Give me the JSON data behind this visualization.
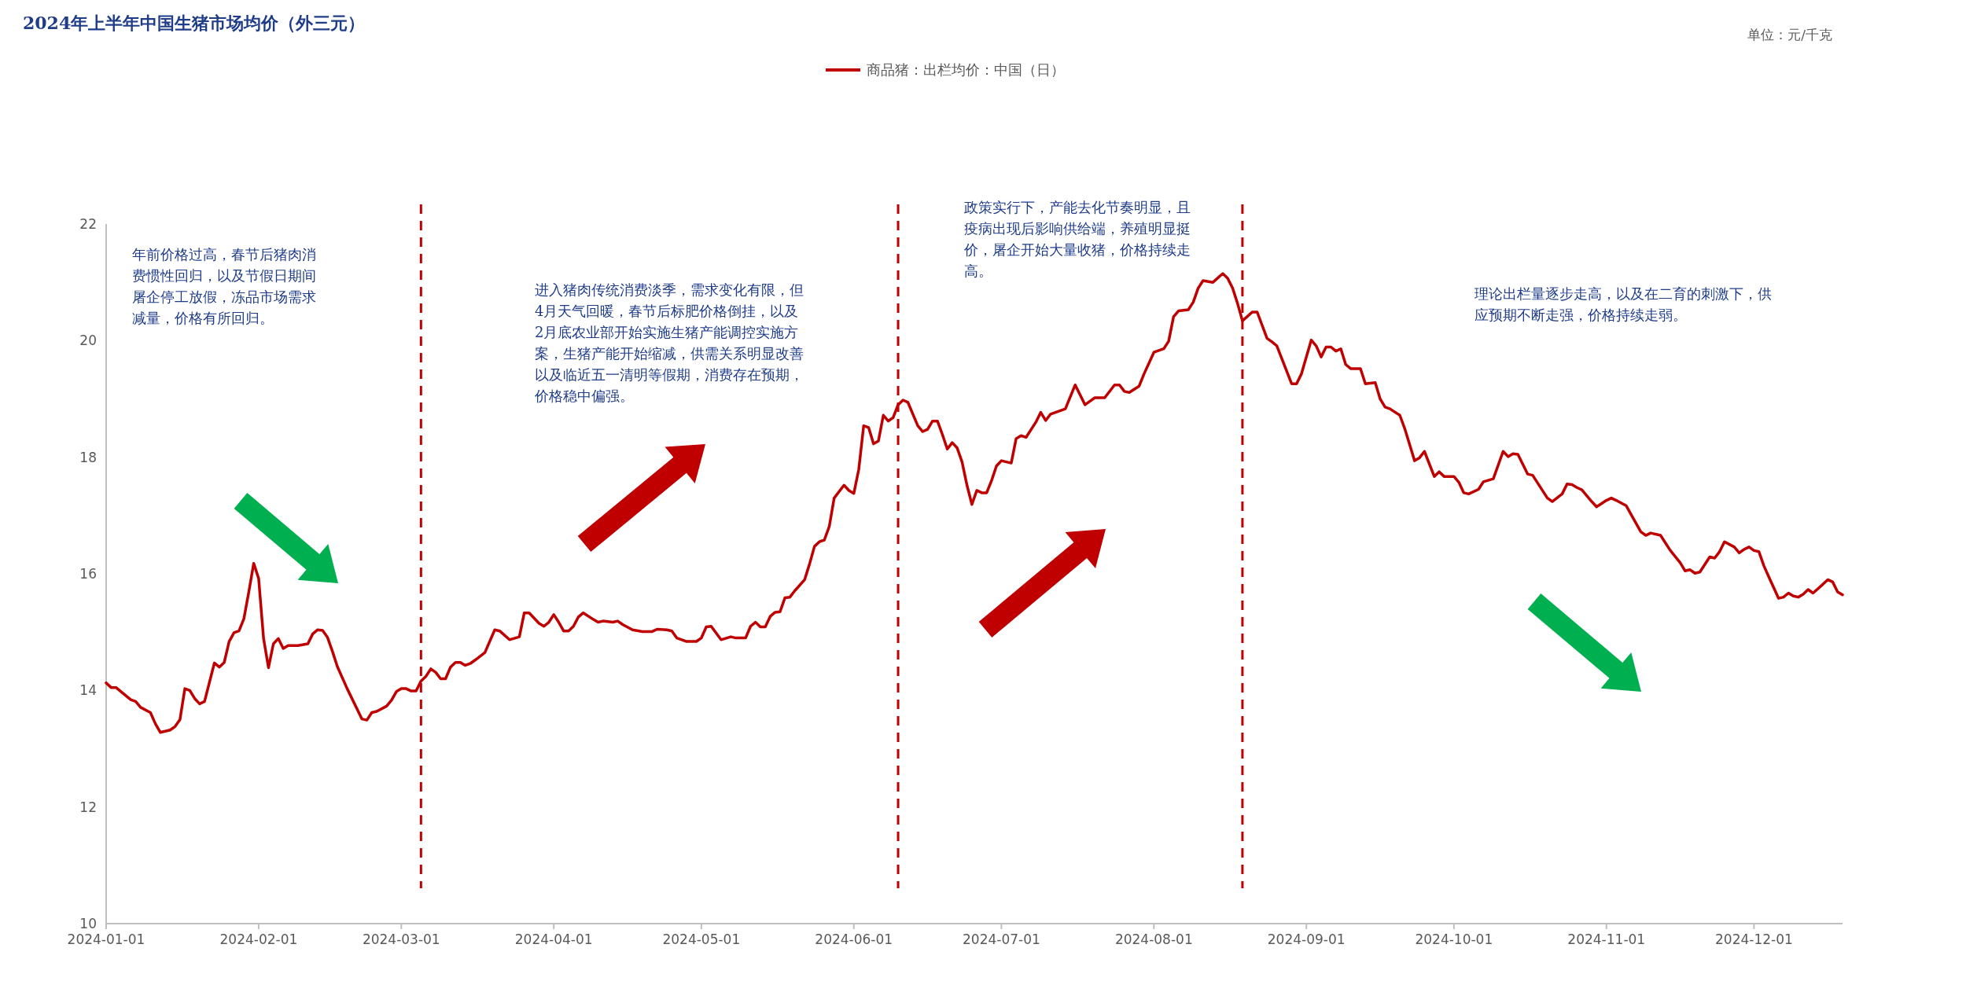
{
  "chart_data": {
    "type": "line",
    "title": "2024年上半年中国生猪市场均价（外三元）",
    "legend": "top",
    "xlim": [
      "2024-01-01",
      "2024-12-19"
    ],
    "xticks": [
      {
        "value": "2024-01-01",
        "label": "2024-01-01"
      },
      {
        "value": "2024-02-01",
        "label": "2024-02-01"
      },
      {
        "value": "2024-03-01",
        "label": "2024-03-01"
      },
      {
        "value": "2024-04-01",
        "label": "2024-04-01"
      },
      {
        "value": "2024-05-01",
        "label": "2024-05-01"
      },
      {
        "value": "2024-06-01",
        "label": "2024-06-01"
      },
      {
        "value": "2024-07-01",
        "label": "2024-07-01"
      },
      {
        "value": "2024-08-01",
        "label": "2024-08-01"
      },
      {
        "value": "2024-09-01",
        "label": "2024-09-01"
      },
      {
        "value": "2024-10-01",
        "label": "2024-10-01"
      },
      {
        "value": "2024-11-01",
        "label": "2024-11-01"
      },
      {
        "value": "2024-12-01",
        "label": "2024-12-01"
      }
    ],
    "ylim": [
      10,
      22
    ],
    "yticks": [
      10,
      12,
      14,
      16,
      18,
      20,
      22
    ],
    "ref_lines": [
      {
        "axis": "x",
        "value": "2024-03-05",
        "color": "#c00000",
        "line_style": "dashed"
      },
      {
        "axis": "x",
        "value": "2024-06-10",
        "color": "#c00000",
        "line_style": "dashed"
      },
      {
        "axis": "x",
        "value": "2024-08-19",
        "color": "#c00000",
        "line_style": "dashed"
      }
    ],
    "annotations": [
      "年前价格过高，春节后猪肉消费惯性回归，以及节假日期间屠企停工放假，冻品市场需求减量，价格有所回归。",
      "进入猪肉传统消费淡季，需求变化有限，但4月天气回暖，春节后标肥价格倒挂，以及2月底农业部开始实施生猪产能调控实施方案，生猪产能开始缩减，供需关系明显改善以及临近五一清明等假期，消费存在预期，价格稳中偏强。",
      "政策实行下，产能去化节奏明显，且疫病出现后影响供给端，养殖明显挺价，屠企开始大量收猪，价格持续走高。",
      "理论出栏量逐步走高，以及在二育的刺激下，供应预期不断走强，价格持续走弱。",
      "单位：元/千克"
    ],
    "series": [
      {
        "name": "商品猪：出栏均价：中国（日）",
        "color": "#c00000",
        "x": [
          "2024-01-01",
          "2024-01-02",
          "2024-01-03",
          "2024-01-06",
          "2024-01-07",
          "2024-01-08",
          "2024-01-10",
          "2024-01-11",
          "2024-01-12",
          "2024-01-14",
          "2024-01-15",
          "2024-01-16",
          "2024-01-17",
          "2024-01-18",
          "2024-01-19",
          "2024-01-20",
          "2024-01-21",
          "2024-01-23",
          "2024-01-24",
          "2024-01-25",
          "2024-01-26",
          "2024-01-27",
          "2024-01-28",
          "2024-01-29",
          "2024-01-30",
          "2024-01-31",
          "2024-02-01",
          "2024-02-02",
          "2024-02-03",
          "2024-02-04",
          "2024-02-05",
          "2024-02-06",
          "2024-02-07",
          "2024-02-09",
          "2024-02-11",
          "2024-02-12",
          "2024-02-13",
          "2024-02-14",
          "2024-02-15",
          "2024-02-16",
          "2024-02-17",
          "2024-02-19",
          "2024-02-22",
          "2024-02-23",
          "2024-02-24",
          "2024-02-25",
          "2024-02-27",
          "2024-02-28",
          "2024-02-29",
          "2024-03-01",
          "2024-03-02",
          "2024-03-03",
          "2024-03-04",
          "2024-03-05",
          "2024-03-06",
          "2024-03-07",
          "2024-03-08",
          "2024-03-09",
          "2024-03-10",
          "2024-03-11",
          "2024-03-12",
          "2024-03-13",
          "2024-03-14",
          "2024-03-15",
          "2024-03-16",
          "2024-03-18",
          "2024-03-20",
          "2024-03-21",
          "2024-03-23",
          "2024-03-25",
          "2024-03-26",
          "2024-03-27",
          "2024-03-29",
          "2024-03-30",
          "2024-03-31",
          "2024-04-01",
          "2024-04-02",
          "2024-04-03",
          "2024-04-04",
          "2024-04-05",
          "2024-04-06",
          "2024-04-07",
          "2024-04-09",
          "2024-04-10",
          "2024-04-11",
          "2024-04-13",
          "2024-04-14",
          "2024-04-15",
          "2024-04-17",
          "2024-04-19",
          "2024-04-21",
          "2024-04-22",
          "2024-04-24",
          "2024-04-25",
          "2024-04-26",
          "2024-04-28",
          "2024-04-30",
          "2024-05-01",
          "2024-05-02",
          "2024-05-03",
          "2024-05-05",
          "2024-05-07",
          "2024-05-08",
          "2024-05-10",
          "2024-05-11",
          "2024-05-12",
          "2024-05-13",
          "2024-05-14",
          "2024-05-15",
          "2024-05-16",
          "2024-05-17",
          "2024-05-18",
          "2024-05-19",
          "2024-05-20",
          "2024-05-22",
          "2024-05-23",
          "2024-05-24",
          "2024-05-25",
          "2024-05-26",
          "2024-05-27",
          "2024-05-28",
          "2024-05-30",
          "2024-05-31",
          "2024-06-01",
          "2024-06-02",
          "2024-06-03",
          "2024-06-04",
          "2024-06-05",
          "2024-06-06",
          "2024-06-07",
          "2024-06-08",
          "2024-06-09",
          "2024-06-10",
          "2024-06-11",
          "2024-06-12",
          "2024-06-14",
          "2024-06-15",
          "2024-06-16",
          "2024-06-17",
          "2024-06-18",
          "2024-06-19",
          "2024-06-20",
          "2024-06-21",
          "2024-06-22",
          "2024-06-23",
          "2024-06-24",
          "2024-06-25",
          "2024-06-26",
          "2024-06-27",
          "2024-06-28",
          "2024-06-29",
          "2024-06-30",
          "2024-07-01",
          "2024-07-03",
          "2024-07-04",
          "2024-07-05",
          "2024-07-06",
          "2024-07-08",
          "2024-07-09",
          "2024-07-10",
          "2024-07-11",
          "2024-07-13",
          "2024-07-14",
          "2024-07-16",
          "2024-07-18",
          "2024-07-20",
          "2024-07-22",
          "2024-07-24",
          "2024-07-25",
          "2024-07-26",
          "2024-07-27",
          "2024-07-29",
          "2024-07-30",
          "2024-08-01",
          "2024-08-03",
          "2024-08-04",
          "2024-08-05",
          "2024-08-06",
          "2024-08-08",
          "2024-08-09",
          "2024-08-10",
          "2024-08-11",
          "2024-08-13",
          "2024-08-15",
          "2024-08-16",
          "2024-08-17",
          "2024-08-18",
          "2024-08-19",
          "2024-08-21",
          "2024-08-22",
          "2024-08-24",
          "2024-08-25",
          "2024-08-26",
          "2024-08-29",
          "2024-08-30",
          "2024-08-31",
          "2024-09-02",
          "2024-09-03",
          "2024-09-04",
          "2024-09-05",
          "2024-09-06",
          "2024-09-07",
          "2024-09-08",
          "2024-09-09",
          "2024-09-10",
          "2024-09-12",
          "2024-09-13",
          "2024-09-15",
          "2024-09-16",
          "2024-09-17",
          "2024-09-18",
          "2024-09-20",
          "2024-09-21",
          "2024-09-23",
          "2024-09-24",
          "2024-09-25",
          "2024-09-27",
          "2024-09-28",
          "2024-09-29",
          "2024-10-01",
          "2024-10-02",
          "2024-10-03",
          "2024-10-04",
          "2024-10-06",
          "2024-10-07",
          "2024-10-09",
          "2024-10-11",
          "2024-10-12",
          "2024-10-13",
          "2024-10-14",
          "2024-10-16",
          "2024-10-17",
          "2024-10-20",
          "2024-10-21",
          "2024-10-23",
          "2024-10-24",
          "2024-10-25",
          "2024-10-26",
          "2024-10-27",
          "2024-10-29",
          "2024-10-30",
          "2024-11-01",
          "2024-11-02",
          "2024-11-03",
          "2024-11-05",
          "2024-11-06",
          "2024-11-08",
          "2024-11-09",
          "2024-11-10",
          "2024-11-12",
          "2024-11-13",
          "2024-11-14",
          "2024-11-16",
          "2024-11-17",
          "2024-11-18",
          "2024-11-19",
          "2024-11-20",
          "2024-11-22",
          "2024-11-23",
          "2024-11-24",
          "2024-11-25",
          "2024-11-27",
          "2024-11-28",
          "2024-11-29",
          "2024-11-30",
          "2024-12-01",
          "2024-12-02",
          "2024-12-03",
          "2024-12-04",
          "2024-12-06",
          "2024-12-07",
          "2024-12-08",
          "2024-12-09",
          "2024-12-10",
          "2024-12-11",
          "2024-12-12",
          "2024-12-13",
          "2024-12-15",
          "2024-12-16",
          "2024-12-17",
          "2024-12-18",
          "2024-12-19"
        ],
        "values": [
          14.13,
          14.05,
          14.05,
          13.84,
          13.81,
          13.71,
          13.62,
          13.43,
          13.28,
          13.32,
          13.38,
          13.5,
          14.03,
          14.0,
          13.86,
          13.77,
          13.81,
          14.47,
          14.4,
          14.48,
          14.84,
          14.99,
          15.02,
          15.23,
          15.69,
          16.18,
          15.92,
          14.89,
          14.39,
          14.8,
          14.89,
          14.72,
          14.77,
          14.77,
          14.8,
          14.97,
          15.04,
          15.03,
          14.91,
          14.67,
          14.41,
          14.03,
          13.51,
          13.49,
          13.62,
          13.64,
          13.73,
          13.83,
          13.98,
          14.03,
          14.03,
          13.99,
          13.99,
          14.16,
          14.24,
          14.37,
          14.31,
          14.2,
          14.2,
          14.4,
          14.48,
          14.48,
          14.43,
          14.46,
          14.52,
          14.65,
          15.04,
          15.02,
          14.87,
          14.92,
          15.33,
          15.33,
          15.15,
          15.1,
          15.17,
          15.3,
          15.17,
          15.02,
          15.02,
          15.1,
          15.26,
          15.33,
          15.22,
          15.17,
          15.19,
          15.17,
          15.19,
          15.13,
          15.04,
          15.01,
          15.01,
          15.05,
          15.04,
          15.02,
          14.9,
          14.84,
          14.84,
          14.9,
          15.09,
          15.1,
          14.87,
          14.92,
          14.9,
          14.9,
          15.1,
          15.17,
          15.09,
          15.09,
          15.27,
          15.34,
          15.35,
          15.59,
          15.6,
          15.71,
          15.9,
          16.17,
          16.47,
          16.55,
          16.58,
          16.81,
          17.3,
          17.52,
          17.43,
          17.38,
          17.79,
          18.54,
          18.51,
          18.23,
          18.28,
          18.72,
          18.62,
          18.68,
          18.9,
          18.98,
          18.94,
          18.54,
          18.44,
          18.48,
          18.62,
          18.62,
          18.39,
          18.14,
          18.25,
          18.16,
          17.92,
          17.52,
          17.19,
          17.43,
          17.39,
          17.39,
          17.6,
          17.85,
          17.94,
          17.9,
          18.32,
          18.37,
          18.34,
          18.6,
          18.77,
          18.63,
          18.74,
          18.8,
          18.83,
          19.24,
          18.9,
          19.02,
          19.02,
          19.24,
          19.24,
          19.13,
          19.11,
          19.22,
          19.43,
          19.8,
          19.86,
          19.99,
          20.41,
          20.51,
          20.53,
          20.66,
          20.9,
          21.03,
          21.0,
          21.15,
          21.07,
          20.9,
          20.64,
          20.34,
          20.49,
          20.49,
          20.04,
          19.98,
          19.91,
          19.26,
          19.26,
          19.43,
          20.01,
          19.91,
          19.72,
          19.89,
          19.89,
          19.82,
          19.86,
          19.59,
          19.52,
          19.52,
          19.26,
          19.28,
          19.0,
          18.86,
          18.83,
          18.72,
          18.49,
          17.94,
          17.99,
          18.1,
          17.67,
          17.75,
          17.67,
          17.67,
          17.57,
          17.39,
          17.37,
          17.45,
          17.58,
          17.63,
          18.1,
          18.01,
          18.06,
          18.05,
          17.71,
          17.69,
          17.3,
          17.24,
          17.37,
          17.54,
          17.53,
          17.48,
          17.44,
          17.24,
          17.15,
          17.26,
          17.3,
          17.26,
          17.17,
          17.02,
          16.72,
          16.66,
          16.7,
          16.66,
          16.53,
          16.4,
          16.19,
          16.05,
          16.07,
          16.01,
          16.03,
          16.29,
          16.27,
          16.38,
          16.55,
          16.46,
          16.36,
          16.42,
          16.46,
          16.4,
          16.38,
          16.14,
          15.95,
          15.58,
          15.6,
          15.67,
          15.62,
          15.6,
          15.65,
          15.73,
          15.67,
          15.82,
          15.9,
          15.86,
          15.69,
          15.64
        ]
      }
    ]
  }
}
